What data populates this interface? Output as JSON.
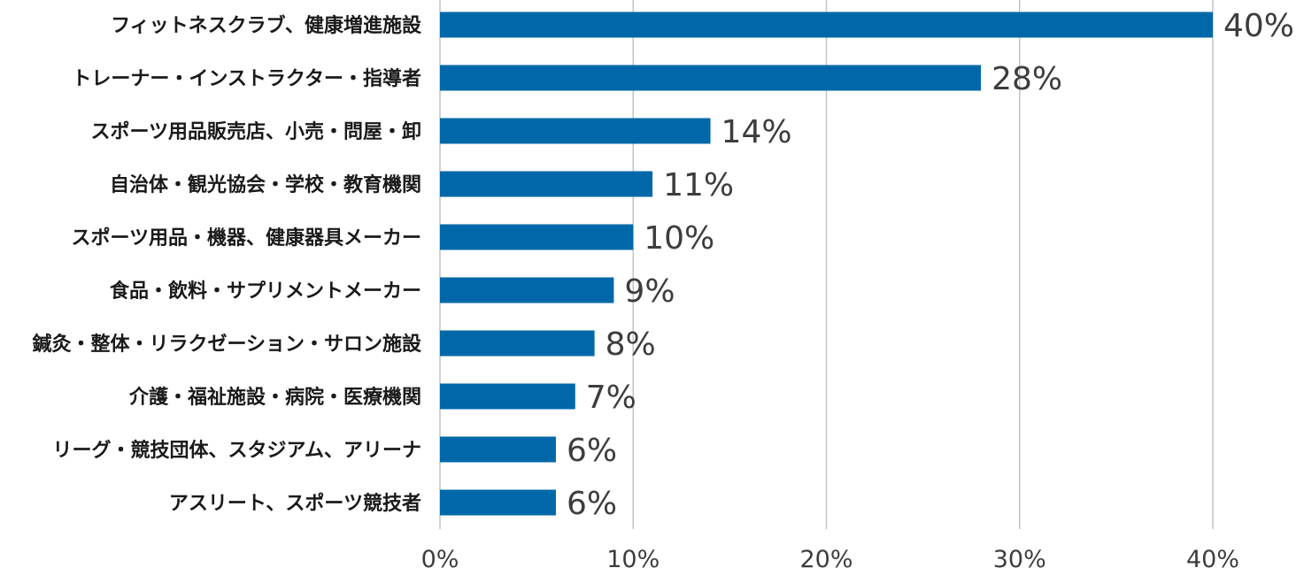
{
  "chart_data": {
    "type": "bar",
    "orientation": "horizontal",
    "categories": [
      "フィットネスクラブ、健康増進施設",
      "トレーナー・インストラクター・指導者",
      "スポーツ用品販売店、小売・問屋・卸",
      "自治体・観光協会・学校・教育機関",
      "スポーツ用品・機器、健康器具メーカー",
      "食品・飲料・サプリメントメーカー",
      "鍼灸・整体・リラクゼーション・サロン施設",
      "介護・福祉施設・病院・医療機関",
      "リーグ・競技団体、スタジアム、アリーナ",
      "アスリート、スポーツ競技者"
    ],
    "values": [
      40,
      28,
      14,
      11,
      10,
      9,
      8,
      7,
      6,
      6
    ],
    "value_labels": [
      "40%",
      "28%",
      "14%",
      "11%",
      "10%",
      "9%",
      "8%",
      "7%",
      "6%",
      "6%"
    ],
    "xlim": [
      0,
      40
    ],
    "xticks": [
      0,
      10,
      20,
      30,
      40
    ],
    "xtick_labels": [
      "0%",
      "10%",
      "20%",
      "30%",
      "40%"
    ],
    "grid": true,
    "bar_color": "#0068a8",
    "title": "",
    "xlabel": "",
    "ylabel": ""
  }
}
